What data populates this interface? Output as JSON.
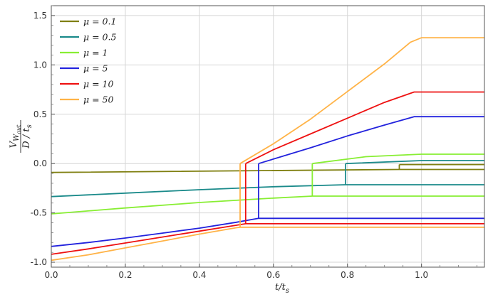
{
  "chart_data": {
    "type": "line",
    "xlabel": "t/t",
    "xlabel_sub": "s",
    "ylabel": {
      "num_main": "V",
      "num_sub": "W",
      "num_subsub": "out",
      "den_main": "D / t",
      "den_sub": "s"
    },
    "xlim": [
      0,
      1.17
    ],
    "ylim": [
      -1.05,
      1.6
    ],
    "xticks": [
      "0.0",
      "0.2",
      "0.4",
      "0.6",
      "0.8",
      "1.0"
    ],
    "xtick_values": [
      0,
      0.2,
      0.4,
      0.6,
      0.8,
      1.0
    ],
    "yticks": [
      "-1.0",
      "-0.5",
      "0.0",
      "0.5",
      "1.0",
      "1.5"
    ],
    "ytick_values": [
      -1.0,
      -0.5,
      0.0,
      0.5,
      1.0,
      1.5
    ],
    "grid": true,
    "legend_position": "top-left",
    "series": [
      {
        "name": "μ = 0.1",
        "color": "#7f7f10",
        "lower": [
          [
            0,
            -0.09
          ],
          [
            0.94,
            -0.06
          ],
          [
            1.17,
            -0.06
          ]
        ],
        "upper": [
          [
            0.94,
            -0.01
          ],
          [
            1.17,
            -0.01
          ]
        ],
        "jump_x": 0.94
      },
      {
        "name": "μ = 0.5",
        "color": "#1a8a8a",
        "lower": [
          [
            0,
            -0.335
          ],
          [
            0.2,
            -0.3
          ],
          [
            0.4,
            -0.265
          ],
          [
            0.6,
            -0.235
          ],
          [
            0.795,
            -0.215
          ],
          [
            1.17,
            -0.215
          ]
        ],
        "upper": [
          [
            0.795,
            0.0
          ],
          [
            1.0,
            0.03
          ],
          [
            1.17,
            0.03
          ]
        ],
        "jump_x": 0.795
      },
      {
        "name": "μ = 1",
        "color": "#88ee33",
        "lower": [
          [
            0,
            -0.51
          ],
          [
            0.2,
            -0.45
          ],
          [
            0.4,
            -0.395
          ],
          [
            0.6,
            -0.35
          ],
          [
            0.705,
            -0.33
          ],
          [
            1.17,
            -0.33
          ]
        ],
        "upper": [
          [
            0.705,
            0.0
          ],
          [
            0.85,
            0.07
          ],
          [
            1.0,
            0.095
          ],
          [
            1.17,
            0.095
          ]
        ],
        "jump_x": 0.705
      },
      {
        "name": "μ = 5",
        "color": "#2222dd",
        "lower": [
          [
            0,
            -0.84
          ],
          [
            0.1,
            -0.8
          ],
          [
            0.2,
            -0.755
          ],
          [
            0.3,
            -0.705
          ],
          [
            0.4,
            -0.655
          ],
          [
            0.5,
            -0.595
          ],
          [
            0.56,
            -0.555
          ],
          [
            1.17,
            -0.555
          ]
        ],
        "upper": [
          [
            0.56,
            0.0
          ],
          [
            0.7,
            0.16
          ],
          [
            0.8,
            0.28
          ],
          [
            0.9,
            0.39
          ],
          [
            0.98,
            0.475
          ],
          [
            1.17,
            0.475
          ]
        ],
        "jump_x": 0.56
      },
      {
        "name": "μ = 10",
        "color": "#ee1111",
        "lower": [
          [
            0,
            -0.92
          ],
          [
            0.1,
            -0.865
          ],
          [
            0.2,
            -0.805
          ],
          [
            0.3,
            -0.745
          ],
          [
            0.4,
            -0.685
          ],
          [
            0.5,
            -0.625
          ],
          [
            0.525,
            -0.61
          ],
          [
            1.17,
            -0.61
          ]
        ],
        "upper": [
          [
            0.525,
            0.0
          ],
          [
            0.6,
            0.14
          ],
          [
            0.7,
            0.3
          ],
          [
            0.8,
            0.46
          ],
          [
            0.9,
            0.62
          ],
          [
            0.98,
            0.725
          ],
          [
            1.17,
            0.725
          ]
        ],
        "jump_x": 0.525
      },
      {
        "name": "μ = 50",
        "color": "#ffb347",
        "lower": [
          [
            0,
            -0.98
          ],
          [
            0.1,
            -0.925
          ],
          [
            0.2,
            -0.855
          ],
          [
            0.3,
            -0.785
          ],
          [
            0.4,
            -0.715
          ],
          [
            0.5,
            -0.65
          ],
          [
            0.51,
            -0.645
          ],
          [
            1.17,
            -0.645
          ]
        ],
        "upper": [
          [
            0.51,
            0.0
          ],
          [
            0.6,
            0.2
          ],
          [
            0.7,
            0.45
          ],
          [
            0.8,
            0.73
          ],
          [
            0.9,
            1.01
          ],
          [
            0.97,
            1.23
          ],
          [
            1.0,
            1.275
          ],
          [
            1.17,
            1.275
          ]
        ],
        "jump_x": 0.51
      }
    ]
  }
}
